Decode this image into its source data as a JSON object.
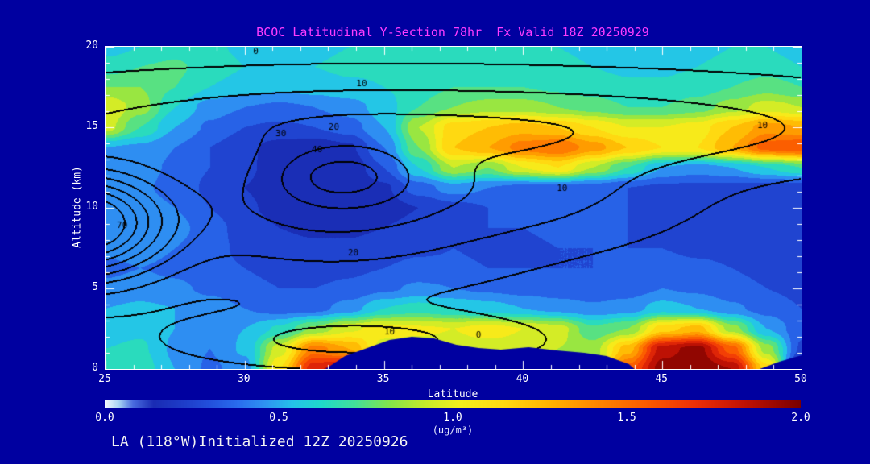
{
  "title": {
    "text": "BCOC Latitudinal Y-Section 78hr  Fx Valid 18Z 20250929",
    "color": "#ff3cff"
  },
  "footer": {
    "text": "LA (118°W)Initialized 12Z 20250926"
  },
  "axes": {
    "x": {
      "label": "Latitude",
      "min": 25,
      "max": 50,
      "ticks": [
        25,
        30,
        35,
        40,
        45,
        50
      ]
    },
    "y": {
      "label": "Altitude (km)",
      "min": 0,
      "max": 20,
      "ticks": [
        0,
        5,
        10,
        15,
        20
      ]
    }
  },
  "colorbar": {
    "min": 0.0,
    "max": 2.0,
    "tick_labels": [
      "0.0",
      "0.5",
      "1.0",
      "1.5",
      "2.0"
    ],
    "label": "(ug/m³)"
  },
  "chart_data": {
    "type": "heatmap",
    "title": "BCOC Latitudinal Y-Section 78hr  Fx Valid 18Z 20250929",
    "xlabel": "Latitude",
    "ylabel": "Altitude (km)",
    "units": "(ug/m³)",
    "x_range": [
      25,
      50
    ],
    "y_range": [
      0,
      20
    ],
    "background": "#0000A0",
    "quantize_step": 0.1,
    "fill_threshold": 0.08,
    "grid_lats": [
      25,
      26.25,
      27.5,
      28.75,
      30,
      31.25,
      32.5,
      33.75,
      35,
      36.25,
      37.5,
      38.75,
      40,
      41.25,
      42.5,
      43.75,
      45,
      46.25,
      47.5,
      48.75,
      50
    ],
    "grid_alts": [
      0,
      1.25,
      2.5,
      3.75,
      5,
      6.25,
      7.5,
      8.75,
      10,
      11.25,
      12.5,
      13.75,
      15,
      16.25,
      17.5,
      18.75,
      20
    ],
    "values_ug_m3": [
      [
        0.62,
        0.66,
        0.5,
        0.38,
        0.45,
        1.1,
        1.78,
        1.9,
        0.8,
        0.8,
        0.8,
        0.8,
        0.8,
        0.8,
        0.8,
        1.55,
        1.95,
        2.0,
        1.9,
        1.15,
        0.05
      ],
      [
        0.6,
        0.62,
        0.48,
        0.4,
        0.52,
        0.95,
        1.45,
        1.3,
        0.95,
        0.95,
        0.95,
        0.95,
        0.95,
        0.9,
        0.85,
        1.25,
        1.85,
        1.95,
        1.55,
        0.85,
        0.28
      ],
      [
        0.55,
        0.58,
        0.5,
        0.45,
        0.5,
        0.62,
        0.82,
        0.98,
        1.05,
        1.02,
        1.0,
        1.05,
        1.0,
        0.95,
        0.72,
        0.8,
        1.15,
        1.25,
        0.85,
        0.5,
        0.33
      ],
      [
        0.5,
        0.52,
        0.5,
        0.45,
        0.4,
        0.35,
        0.36,
        0.45,
        0.6,
        0.65,
        0.6,
        0.55,
        0.5,
        0.46,
        0.42,
        0.45,
        0.55,
        0.5,
        0.42,
        0.36,
        0.3
      ],
      [
        0.42,
        0.45,
        0.42,
        0.38,
        0.33,
        0.3,
        0.3,
        0.32,
        0.38,
        0.42,
        0.4,
        0.38,
        0.36,
        0.34,
        0.33,
        0.35,
        0.4,
        0.38,
        0.34,
        0.3,
        0.27
      ],
      [
        0.38,
        0.4,
        0.38,
        0.33,
        0.3,
        0.27,
        0.26,
        0.28,
        0.3,
        0.33,
        0.32,
        0.3,
        0.3,
        0.3,
        0.3,
        0.32,
        0.34,
        0.32,
        0.3,
        0.27,
        0.25
      ],
      [
        0.42,
        0.44,
        0.4,
        0.33,
        0.28,
        0.24,
        0.22,
        0.22,
        0.25,
        0.28,
        0.3,
        0.28,
        0.28,
        0.3,
        0.3,
        0.3,
        0.3,
        0.28,
        0.27,
        0.25,
        0.23
      ],
      [
        0.48,
        0.5,
        0.44,
        0.34,
        0.26,
        0.2,
        0.18,
        0.18,
        0.2,
        0.24,
        0.28,
        0.3,
        0.3,
        0.32,
        0.32,
        0.3,
        0.28,
        0.26,
        0.25,
        0.24,
        0.22
      ],
      [
        0.45,
        0.46,
        0.4,
        0.3,
        0.22,
        0.16,
        0.13,
        0.12,
        0.15,
        0.2,
        0.26,
        0.3,
        0.32,
        0.34,
        0.33,
        0.3,
        0.28,
        0.26,
        0.25,
        0.24,
        0.22
      ],
      [
        0.42,
        0.42,
        0.36,
        0.28,
        0.2,
        0.14,
        0.1,
        0.1,
        0.18,
        0.35,
        0.45,
        0.4,
        0.36,
        0.36,
        0.34,
        0.3,
        0.28,
        0.27,
        0.26,
        0.25,
        0.24
      ],
      [
        0.44,
        0.44,
        0.38,
        0.3,
        0.22,
        0.15,
        0.1,
        0.12,
        0.3,
        0.6,
        0.9,
        0.8,
        1.0,
        1.1,
        0.9,
        0.7,
        0.5,
        0.45,
        0.5,
        0.6,
        0.7
      ],
      [
        0.5,
        0.48,
        0.4,
        0.3,
        0.22,
        0.16,
        0.13,
        0.18,
        0.4,
        0.8,
        1.2,
        1.3,
        1.45,
        1.5,
        1.35,
        1.2,
        1.1,
        1.1,
        1.3,
        1.55,
        1.6
      ],
      [
        0.95,
        0.7,
        0.5,
        0.38,
        0.3,
        0.28,
        0.3,
        0.35,
        0.5,
        0.9,
        1.15,
        1.2,
        1.25,
        1.2,
        1.1,
        1.0,
        1.0,
        1.05,
        1.2,
        1.35,
        1.3
      ],
      [
        1.0,
        0.85,
        0.6,
        0.45,
        0.4,
        0.38,
        0.4,
        0.45,
        0.55,
        0.7,
        0.8,
        0.85,
        0.85,
        0.8,
        0.75,
        0.7,
        0.7,
        0.75,
        0.85,
        0.95,
        0.9
      ],
      [
        0.8,
        0.8,
        0.7,
        0.6,
        0.55,
        0.52,
        0.55,
        0.58,
        0.6,
        0.65,
        0.7,
        0.7,
        0.7,
        0.68,
        0.65,
        0.62,
        0.62,
        0.65,
        0.7,
        0.75,
        0.7
      ],
      [
        0.65,
        0.7,
        0.72,
        0.65,
        0.6,
        0.58,
        0.6,
        0.62,
        0.62,
        0.62,
        0.65,
        0.65,
        0.63,
        0.62,
        0.6,
        0.58,
        0.58,
        0.6,
        0.62,
        0.65,
        0.6
      ],
      [
        0.55,
        0.6,
        0.65,
        0.62,
        0.58,
        0.56,
        0.58,
        0.6,
        0.6,
        0.6,
        0.62,
        0.62,
        0.6,
        0.6,
        0.58,
        0.56,
        0.56,
        0.58,
        0.6,
        0.6,
        0.55
      ]
    ],
    "colormap_stops": [
      [
        0.0,
        "#f4faff"
      ],
      [
        0.04,
        "#a8d4f4"
      ],
      [
        0.08,
        "#4a6ce0"
      ],
      [
        0.14,
        "#1a2cb4"
      ],
      [
        0.22,
        "#1e3cc8"
      ],
      [
        0.3,
        "#2350dc"
      ],
      [
        0.38,
        "#2a6cee"
      ],
      [
        0.46,
        "#2f93f2"
      ],
      [
        0.54,
        "#25c3ea"
      ],
      [
        0.62,
        "#1fd9cc"
      ],
      [
        0.72,
        "#44e09a"
      ],
      [
        0.82,
        "#85e44b"
      ],
      [
        0.92,
        "#c6ea2a"
      ],
      [
        1.02,
        "#f4ef1d"
      ],
      [
        1.15,
        "#ffd911"
      ],
      [
        1.28,
        "#ffb300"
      ],
      [
        1.42,
        "#ff8500"
      ],
      [
        1.56,
        "#fb5b00"
      ],
      [
        1.7,
        "#ee2f08"
      ],
      [
        1.84,
        "#c11204"
      ],
      [
        2.0,
        "#7b0000"
      ]
    ],
    "terrain_polygons": [
      [
        [
          32.9,
          0
        ],
        [
          33.6,
          0.8
        ],
        [
          34.4,
          1.3
        ],
        [
          35.2,
          1.8
        ],
        [
          36.0,
          2.0
        ],
        [
          36.8,
          1.9
        ],
        [
          37.6,
          1.5
        ],
        [
          38.4,
          1.3
        ],
        [
          39.2,
          1.2
        ],
        [
          40.2,
          1.35
        ],
        [
          41.2,
          1.15
        ],
        [
          42.2,
          1.0
        ],
        [
          43.0,
          0.8
        ],
        [
          43.8,
          0.3
        ],
        [
          44.0,
          0
        ]
      ],
      [
        [
          48.5,
          0
        ],
        [
          49.2,
          0.45
        ],
        [
          50.0,
          0.85
        ],
        [
          50.0,
          0
        ]
      ]
    ],
    "contour_overlay": {
      "levels": [
        0,
        10,
        20,
        30,
        40,
        50,
        60,
        70
      ],
      "base": -4,
      "gaussians": [
        {
          "amp": 92,
          "lat": 24.0,
          "alt": 9.0,
          "slat": 3.0,
          "salt": 3.2
        },
        {
          "amp": 24,
          "lat": 33.5,
          "alt": 12.0,
          "slat": 2.4,
          "salt": 1.8
        },
        {
          "amp": 26,
          "lat": 33.0,
          "alt": 10.0,
          "slat": 6.5,
          "salt": 4.2
        },
        {
          "amp": 20,
          "lat": 36.0,
          "alt": 15.5,
          "slat": 16.0,
          "salt": 2.68
        },
        {
          "amp": 6,
          "lat": 46.0,
          "alt": 14.0,
          "slat": 8.0,
          "salt": 2.5
        },
        {
          "amp": 12,
          "lat": 41.0,
          "alt": 11.0,
          "slat": 5.0,
          "salt": 3.0
        },
        {
          "amp": 18,
          "lat": 34.0,
          "alt": 1.8,
          "slat": 5.5,
          "salt": 1.5
        }
      ],
      "labels": [
        {
          "text": "0",
          "lat": 30.4,
          "alt": 19.7
        },
        {
          "text": "10",
          "lat": 34.2,
          "alt": 17.7
        },
        {
          "text": "20",
          "lat": 33.2,
          "alt": 15.0
        },
        {
          "text": "30",
          "lat": 31.3,
          "alt": 14.6
        },
        {
          "text": "40",
          "lat": 32.6,
          "alt": 13.6
        },
        {
          "text": "70",
          "lat": 25.6,
          "alt": 8.9
        },
        {
          "text": "20",
          "lat": 33.9,
          "alt": 7.2
        },
        {
          "text": "10",
          "lat": 41.4,
          "alt": 11.2
        },
        {
          "text": "10",
          "lat": 48.6,
          "alt": 15.1
        },
        {
          "text": "10",
          "lat": 35.2,
          "alt": 2.3
        },
        {
          "text": "0",
          "lat": 38.4,
          "alt": 2.1
        }
      ]
    }
  }
}
